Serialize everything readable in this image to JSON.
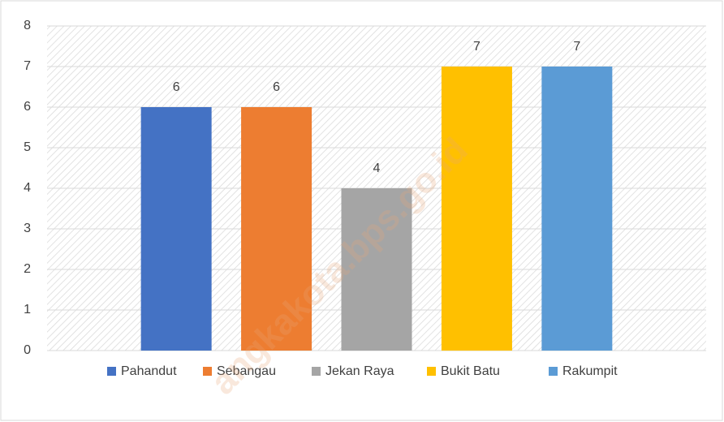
{
  "chart_data": {
    "type": "bar",
    "categories": [
      null
    ],
    "series": [
      {
        "name": "Pahandut",
        "color": "#4472c4",
        "values": [
          6
        ]
      },
      {
        "name": "Sebangau",
        "color": "#ed7d31",
        "values": [
          6
        ]
      },
      {
        "name": "Jekan Raya",
        "color": "#a5a5a5",
        "values": [
          4
        ]
      },
      {
        "name": "Bukit Batu",
        "color": "#ffc000",
        "values": [
          7
        ]
      },
      {
        "name": "Rakumpit",
        "color": "#5b9bd5",
        "values": [
          7
        ]
      }
    ],
    "ylim": [
      0,
      8
    ],
    "yticks": [
      0,
      1,
      2,
      3,
      4,
      5,
      6,
      7,
      8
    ],
    "grid": true,
    "data_labels": true,
    "legend": "bottom",
    "watermark": "angkakota.bps.go.id"
  }
}
